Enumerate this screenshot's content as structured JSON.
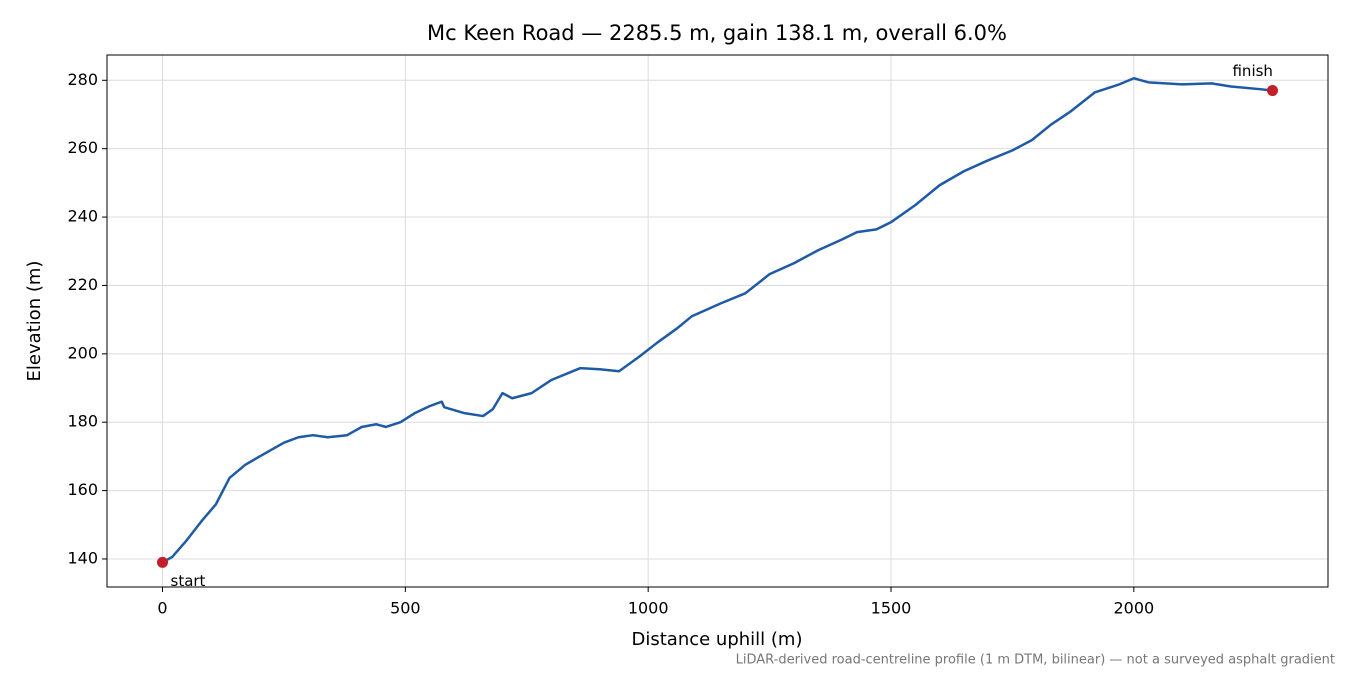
{
  "chart_data": {
    "type": "line",
    "title": "Mc Keen Road — 2285.5 m, gain 138.1 m, overall 6.0%",
    "xlabel": "Distance uphill (m)",
    "ylabel": "Elevation (m)",
    "footnote": "LiDAR-derived road-centreline profile (1 m DTM, bilinear) — not a surveyed asphalt gradient",
    "x": [
      0,
      20,
      50,
      80,
      110,
      138,
      170,
      200,
      250,
      280,
      310,
      340,
      380,
      410,
      440,
      460,
      490,
      520,
      550,
      575,
      580,
      620,
      660,
      680,
      700,
      720,
      760,
      800,
      860,
      900,
      940,
      980,
      1020,
      1060,
      1090,
      1150,
      1200,
      1250,
      1300,
      1350,
      1400,
      1430,
      1470,
      1500,
      1550,
      1600,
      1650,
      1700,
      1750,
      1790,
      1830,
      1870,
      1920,
      1970,
      2000,
      2030,
      2100,
      2160,
      2200,
      2260,
      2285.5
    ],
    "series": [
      {
        "name": "Elevation",
        "color": "#1f5aa6",
        "values": [
          139,
          140.6,
          145.5,
          151,
          156,
          163.7,
          167.5,
          170,
          174,
          175.6,
          176.2,
          175.6,
          176.2,
          178.6,
          179.4,
          178.6,
          180,
          182.7,
          184.7,
          186,
          184.4,
          182.7,
          181.8,
          183.8,
          188.5,
          187,
          188.5,
          192.3,
          195.8,
          195.5,
          194.9,
          199,
          203.4,
          207.5,
          211,
          214.8,
          217.7,
          223.3,
          226.5,
          230.3,
          233.5,
          235.6,
          236.4,
          238.5,
          243.5,
          249.3,
          253.4,
          256.6,
          259.5,
          262.5,
          267.1,
          270.9,
          276.5,
          278.8,
          280.6,
          279.4,
          278.8,
          279.1,
          278.2,
          277.4,
          277.0
        ]
      }
    ],
    "markers": [
      {
        "label": "start",
        "x": 0,
        "y": 139,
        "color": "#c41e2a"
      },
      {
        "label": "finish",
        "x": 2285.5,
        "y": 277.0,
        "color": "#c41e2a"
      }
    ],
    "xlim": [
      -114.3,
      2399.8
    ],
    "ylim": [
      131.8,
      287.4
    ],
    "xticks": [
      0,
      500,
      1000,
      1500,
      2000
    ],
    "yticks": [
      140,
      160,
      180,
      200,
      220,
      240,
      260,
      280
    ],
    "grid": true
  }
}
